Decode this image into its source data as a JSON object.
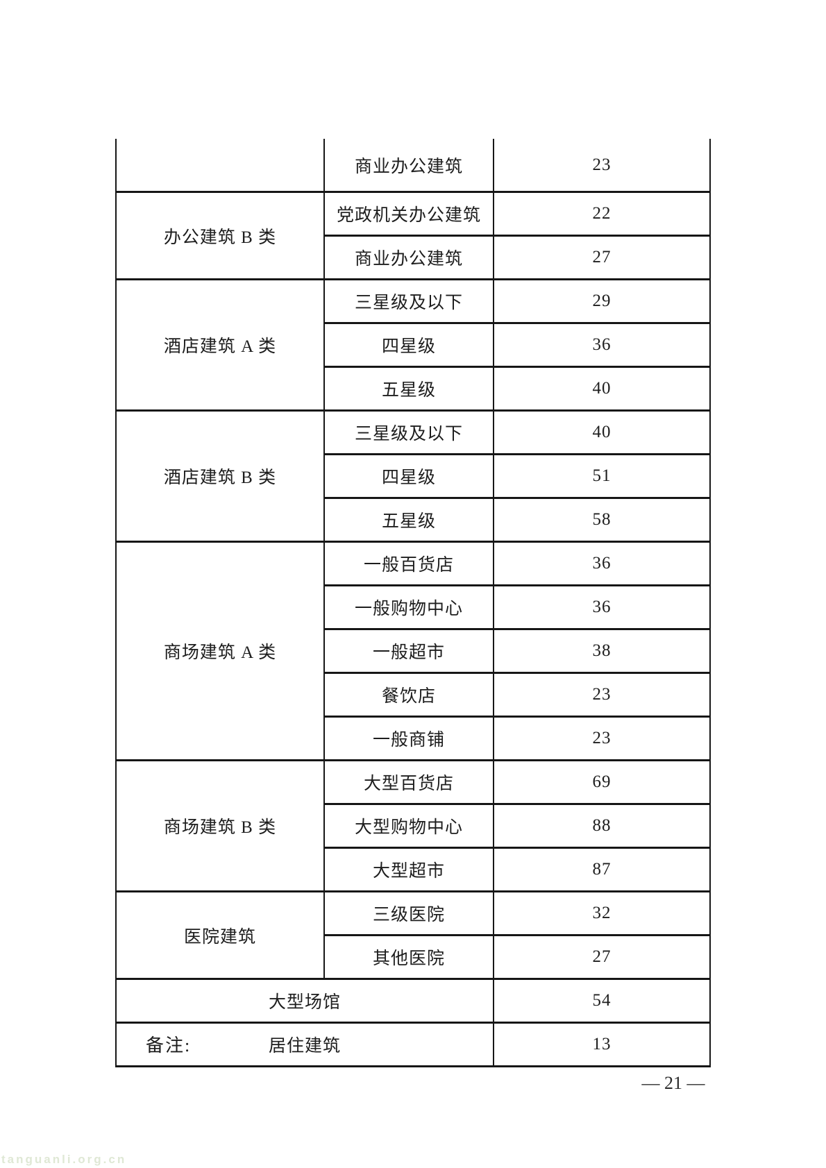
{
  "table": {
    "continued_row": {
      "label": "商业办公建筑",
      "value": "23"
    },
    "groups": [
      {
        "category": "办公建筑 B 类",
        "rows": [
          {
            "label": "党政机关办公建筑",
            "value": "22"
          },
          {
            "label": "商业办公建筑",
            "value": "27"
          }
        ]
      },
      {
        "category": "酒店建筑 A 类",
        "rows": [
          {
            "label": "三星级及以下",
            "value": "29"
          },
          {
            "label": "四星级",
            "value": "36"
          },
          {
            "label": "五星级",
            "value": "40"
          }
        ]
      },
      {
        "category": "酒店建筑 B 类",
        "rows": [
          {
            "label": "三星级及以下",
            "value": "40"
          },
          {
            "label": "四星级",
            "value": "51"
          },
          {
            "label": "五星级",
            "value": "58"
          }
        ]
      },
      {
        "category": "商场建筑 A 类",
        "rows": [
          {
            "label": "一般百货店",
            "value": "36"
          },
          {
            "label": "一般购物中心",
            "value": "36"
          },
          {
            "label": "一般超市",
            "value": "38"
          },
          {
            "label": "餐饮店",
            "value": "23"
          },
          {
            "label": "一般商铺",
            "value": "23"
          }
        ]
      },
      {
        "category": "商场建筑 B 类",
        "rows": [
          {
            "label": "大型百货店",
            "value": "69"
          },
          {
            "label": "大型购物中心",
            "value": "88"
          },
          {
            "label": "大型超市",
            "value": "87"
          }
        ]
      },
      {
        "category": "医院建筑",
        "rows": [
          {
            "label": "三级医院",
            "value": "32"
          },
          {
            "label": "其他医院",
            "value": "27"
          }
        ]
      }
    ],
    "merged_rows": [
      {
        "label": "大型场馆",
        "value": "54"
      },
      {
        "label": "居住建筑",
        "value": "13"
      }
    ]
  },
  "notes_label": "备注:",
  "page_number": "— 21 —",
  "watermark": "tanguanli.org.cn"
}
